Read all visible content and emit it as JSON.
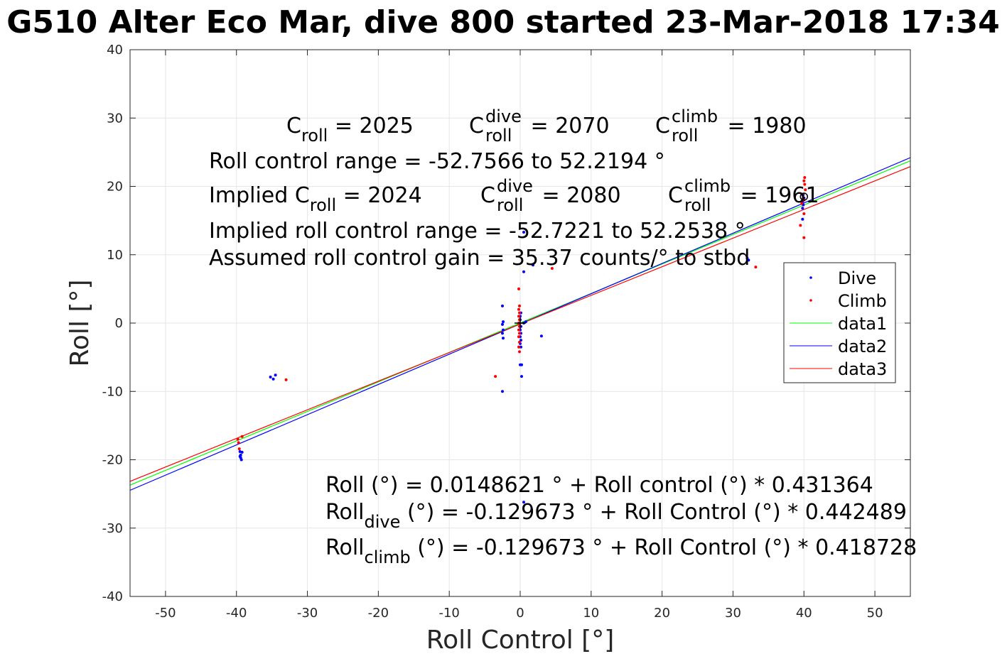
{
  "chart_data": {
    "type": "scatter",
    "title": "G510 Alter Eco Mar, dive 800 started 23-Mar-2018 17:34",
    "xlabel": "Roll Control [°]",
    "ylabel": "Roll [°]",
    "xlim": [
      -55,
      55
    ],
    "ylim": [
      -40,
      40
    ],
    "xticks": [
      -50,
      -40,
      -30,
      -20,
      -10,
      0,
      10,
      20,
      30,
      40,
      50
    ],
    "yticks": [
      -40,
      -30,
      -20,
      -10,
      0,
      10,
      20,
      30,
      40
    ],
    "xtick_labels": [
      "-50",
      "-40",
      "-30",
      "-20",
      "-10",
      "0",
      "10",
      "20",
      "30",
      "40",
      "50"
    ],
    "ytick_labels": [
      "-40",
      "-30",
      "-20",
      "-10",
      "0",
      "10",
      "20",
      "30",
      "40"
    ],
    "grid": true,
    "legend_position": "right",
    "series": [
      {
        "name": "Dive",
        "kind": "points",
        "color": "#0000ff",
        "points": [
          [
            -39.5,
            -18.8
          ],
          [
            -39.4,
            -19.3
          ],
          [
            -39.4,
            -19.7
          ],
          [
            -39.3,
            -20.0
          ],
          [
            -39.2,
            -18.9
          ],
          [
            -39.5,
            -19.5
          ],
          [
            -35.2,
            -7.9
          ],
          [
            -34.8,
            -8.2
          ],
          [
            -34.5,
            -7.6
          ],
          [
            -2.5,
            2.5
          ],
          [
            -2.4,
            0.2
          ],
          [
            -2.5,
            -0.2
          ],
          [
            -2.4,
            -1.0
          ],
          [
            -2.5,
            -1.5
          ],
          [
            -2.4,
            -2.2
          ],
          [
            -2.5,
            -10.0
          ],
          [
            0.0,
            0.5
          ],
          [
            0.1,
            -0.5
          ],
          [
            0.0,
            -1.0
          ],
          [
            0.1,
            -1.5
          ],
          [
            0.0,
            -2.0
          ],
          [
            0.1,
            -2.5
          ],
          [
            0.0,
            -3.0
          ],
          [
            0.1,
            -3.5
          ],
          [
            0.0,
            1.0
          ],
          [
            0.1,
            1.5
          ],
          [
            0.0,
            -6.1
          ],
          [
            0.2,
            -6.1
          ],
          [
            0.2,
            -7.8
          ],
          [
            0.5,
            13.3
          ],
          [
            0.5,
            7.5
          ],
          [
            0.5,
            0.0
          ],
          [
            0.8,
            0.2
          ],
          [
            1.8,
            8.5
          ],
          [
            3.0,
            -1.9
          ],
          [
            0.5,
            -26.2
          ],
          [
            32.0,
            9.5
          ],
          [
            32.2,
            9.2
          ],
          [
            39.8,
            15.2
          ],
          [
            39.8,
            16.8
          ],
          [
            39.9,
            17.3
          ],
          [
            39.8,
            17.8
          ],
          [
            40.0,
            18.3
          ],
          [
            39.9,
            18.8
          ]
        ]
      },
      {
        "name": "Climb",
        "kind": "points",
        "color": "#ff0000",
        "points": [
          [
            -39.8,
            -17.0
          ],
          [
            -39.7,
            -17.5
          ],
          [
            -39.6,
            -18.4
          ],
          [
            -39.2,
            -16.6
          ],
          [
            -33.0,
            -8.3
          ],
          [
            -3.5,
            -7.8
          ],
          [
            -0.2,
            5.0
          ],
          [
            -0.1,
            2.5
          ],
          [
            -0.2,
            2.0
          ],
          [
            -0.1,
            1.5
          ],
          [
            -0.2,
            1.0
          ],
          [
            -0.1,
            0.5
          ],
          [
            -0.2,
            0.0
          ],
          [
            -0.1,
            -0.5
          ],
          [
            -0.2,
            -1.0
          ],
          [
            -0.1,
            -1.5
          ],
          [
            -0.2,
            -2.0
          ],
          [
            -0.1,
            -2.8
          ],
          [
            -0.2,
            -3.5
          ],
          [
            -0.1,
            -4.2
          ],
          [
            4.5,
            8.0
          ],
          [
            33.2,
            8.2
          ],
          [
            39.5,
            14.3
          ],
          [
            40.0,
            12.5
          ],
          [
            40.0,
            16.0
          ],
          [
            39.7,
            17.5
          ],
          [
            40.0,
            18.0
          ],
          [
            39.8,
            18.8
          ],
          [
            40.2,
            19.5
          ],
          [
            40.1,
            20.3
          ],
          [
            40.0,
            20.8
          ],
          [
            40.1,
            21.3
          ]
        ]
      },
      {
        "name": "data1",
        "kind": "line",
        "color": "#00ff00",
        "x": [
          -55,
          55
        ],
        "y": [
          -23.71,
          23.74
        ]
      },
      {
        "name": "data2",
        "kind": "line",
        "color": "#0000ff",
        "x": [
          -55,
          55
        ],
        "y": [
          -24.47,
          24.21
        ]
      },
      {
        "name": "data3",
        "kind": "line",
        "color": "#ff0000",
        "x": [
          -55,
          55
        ],
        "y": [
          -23.16,
          22.9
        ]
      }
    ],
    "annotations": {
      "c_roll": {
        "main": "C",
        "sub": "roll",
        "value": " = 2025"
      },
      "c_roll_dive": {
        "main": "C",
        "sup": "dive",
        "sub": "roll",
        "value": " = 2070"
      },
      "c_roll_climb": {
        "main": "C",
        "sup": "climb",
        "sub": "roll",
        "value": " = 1980"
      },
      "roll_control_range": "Roll control range = -52.7566 to 52.2194 °",
      "implied_c_roll": {
        "main": "Implied C",
        "sub": "roll",
        "value": " = 2024"
      },
      "implied_c_roll_dive": {
        "main": "C",
        "sup": "dive",
        "sub": "roll",
        "value": " = 2080"
      },
      "implied_c_roll_climb": {
        "main": "C",
        "sup": "climb",
        "sub": "roll",
        "value": " = 1961"
      },
      "implied_range": "Implied roll control range = -52.7221 to 52.2538 °",
      "gain": "Assumed roll control gain = 35.37 counts/° to stbd",
      "fit_all": "Roll (°) = 0.0148621 ° + Roll control (°) * 0.431364",
      "fit_dive": {
        "main": "Roll",
        "sub": "dive",
        "value": " (°) = -0.129673 ° + Roll Control (°) * 0.442489"
      },
      "fit_climb": {
        "main": "Roll",
        "sub": "climb",
        "value": " (°) = -0.129673 ° + Roll Control (°) * 0.418728"
      }
    },
    "cross_marker": {
      "x": 0,
      "y": 0,
      "color": "#000000"
    },
    "circle_marker": {
      "x": 40,
      "y": 18.5,
      "color": "#000000"
    }
  }
}
